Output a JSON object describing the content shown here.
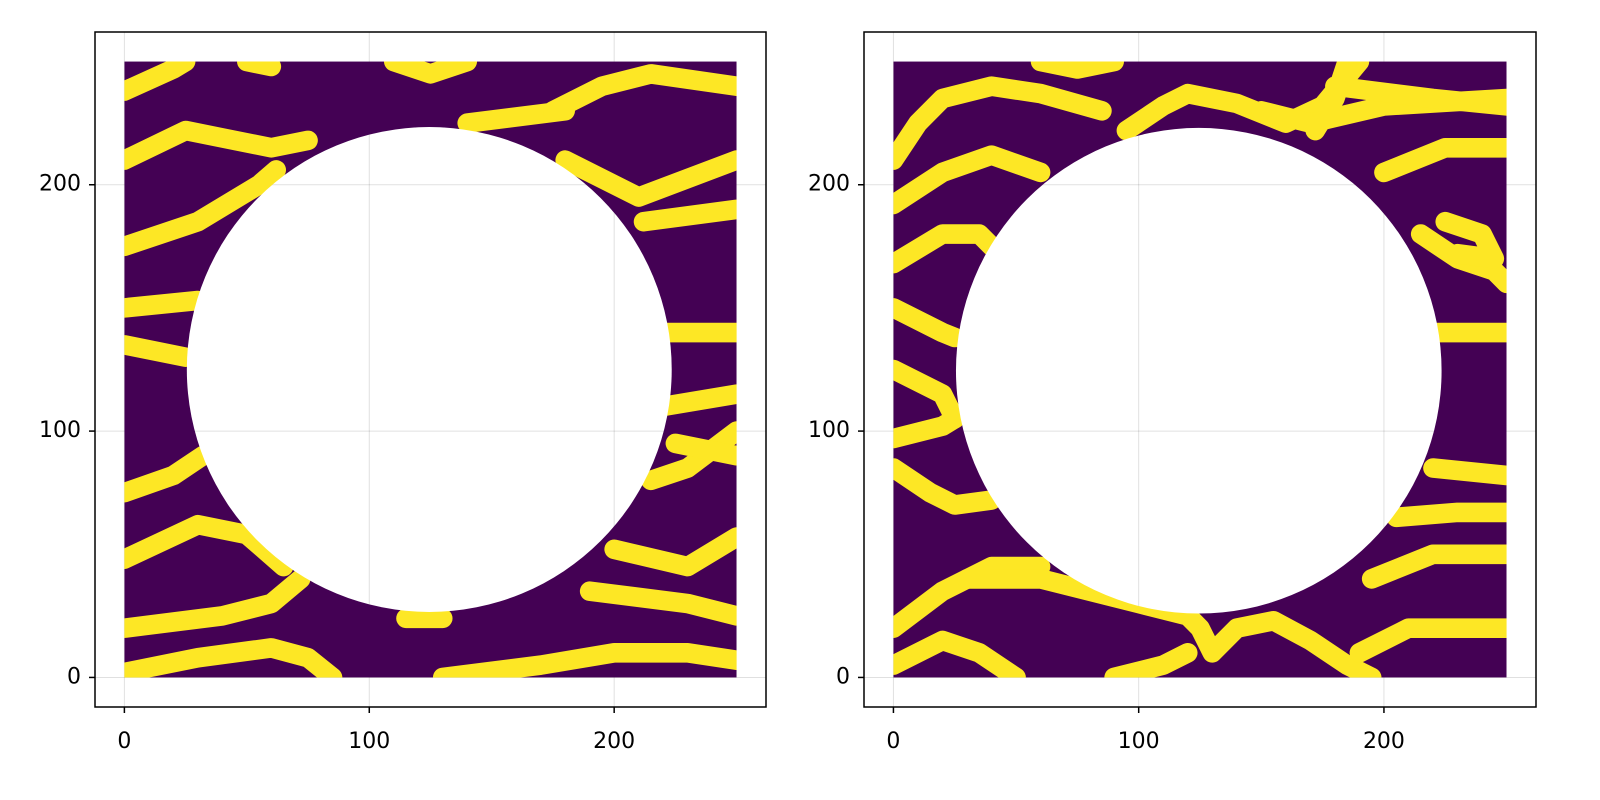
{
  "chart_data": [
    {
      "type": "heatmap",
      "xlim": [
        -12,
        262
      ],
      "ylim": [
        -12,
        262
      ],
      "xticks": [
        0,
        100,
        200
      ],
      "yticks": [
        0,
        100,
        200
      ],
      "grid": true,
      "extent": [
        0,
        250
      ],
      "background_color": "#440154",
      "color": "#fde725",
      "streak_width": 8,
      "hole": {
        "cx": 124.5,
        "cy": 125,
        "r": 99
      },
      "streaks": [
        {
          "x": [
            0,
            20,
            25
          ],
          "y": [
            238,
            247,
            250
          ]
        },
        {
          "x": [
            0,
            25,
            60,
            75
          ],
          "y": [
            210,
            222,
            215,
            218
          ]
        },
        {
          "x": [
            0,
            30,
            55,
            62
          ],
          "y": [
            175,
            185,
            200,
            206
          ]
        },
        {
          "x": [
            0,
            30
          ],
          "y": [
            150,
            153
          ]
        },
        {
          "x": [
            0,
            25
          ],
          "y": [
            135,
            130
          ]
        },
        {
          "x": [
            0,
            20,
            32
          ],
          "y": [
            75,
            82,
            90
          ]
        },
        {
          "x": [
            0,
            30,
            50,
            65
          ],
          "y": [
            48,
            62,
            58,
            45
          ]
        },
        {
          "x": [
            0,
            40,
            60,
            72
          ],
          "y": [
            20,
            25,
            30,
            40
          ]
        },
        {
          "x": [
            0,
            30,
            60,
            75,
            85
          ],
          "y": [
            2,
            8,
            12,
            8,
            0
          ]
        },
        {
          "x": [
            115,
            130
          ],
          "y": [
            24,
            24
          ]
        },
        {
          "x": [
            130,
            170,
            200,
            230,
            250
          ],
          "y": [
            0,
            5,
            10,
            10,
            7
          ]
        },
        {
          "x": [
            190,
            230,
            250
          ],
          "y": [
            35,
            30,
            25
          ]
        },
        {
          "x": [
            200,
            230,
            250
          ],
          "y": [
            52,
            45,
            57
          ]
        },
        {
          "x": [
            215,
            230,
            250
          ],
          "y": [
            80,
            85,
            100
          ]
        },
        {
          "x": [
            225,
            250
          ],
          "y": [
            95,
            90
          ]
        },
        {
          "x": [
            220,
            250
          ],
          "y": [
            110,
            115
          ]
        },
        {
          "x": [
            222,
            250
          ],
          "y": [
            140,
            140
          ]
        },
        {
          "x": [
            212,
            250
          ],
          "y": [
            185,
            190
          ]
        },
        {
          "x": [
            180,
            210,
            250
          ],
          "y": [
            210,
            195,
            210
          ]
        },
        {
          "x": [
            140,
            180
          ],
          "y": [
            225,
            230
          ]
        },
        {
          "x": [
            175,
            195,
            215,
            250
          ],
          "y": [
            230,
            240,
            245,
            240
          ]
        },
        {
          "x": [
            110,
            125,
            140
          ],
          "y": [
            250,
            245,
            250
          ]
        },
        {
          "x": [
            50,
            60
          ],
          "y": [
            250,
            248
          ]
        }
      ]
    },
    {
      "type": "heatmap",
      "xlim": [
        -12,
        262
      ],
      "ylim": [
        -12,
        262
      ],
      "xticks": [
        0,
        100,
        200
      ],
      "yticks": [
        0,
        100,
        200
      ],
      "grid": true,
      "extent": [
        0,
        250
      ],
      "background_color": "#440154",
      "color": "#fde725",
      "streak_width": 8,
      "hole": {
        "cx": 124.5,
        "cy": 124.5,
        "r": 99
      },
      "streaks": [
        {
          "x": [
            60,
            75,
            90
          ],
          "y": [
            250,
            247,
            250
          ]
        },
        {
          "x": [
            0,
            10,
            20,
            40,
            60,
            85
          ],
          "y": [
            210,
            225,
            235,
            240,
            237,
            230
          ]
        },
        {
          "x": [
            95,
            110,
            120,
            140,
            160,
            175,
            190
          ],
          "y": [
            222,
            232,
            237,
            233,
            225,
            232,
            250
          ]
        },
        {
          "x": [
            150,
            170,
            200,
            250
          ],
          "y": [
            230,
            225,
            232,
            235
          ]
        },
        {
          "x": [
            0,
            20,
            40,
            60
          ],
          "y": [
            192,
            205,
            212,
            205
          ]
        },
        {
          "x": [
            0,
            20,
            35,
            40
          ],
          "y": [
            168,
            180,
            180,
            175
          ]
        },
        {
          "x": [
            0,
            20,
            25
          ],
          "y": [
            150,
            140,
            138
          ]
        },
        {
          "x": [
            0,
            20,
            25
          ],
          "y": [
            125,
            115,
            105
          ]
        },
        {
          "x": [
            0,
            20,
            25
          ],
          "y": [
            97,
            102,
            105
          ]
        },
        {
          "x": [
            0,
            15,
            25,
            40
          ],
          "y": [
            85,
            75,
            70,
            72
          ]
        },
        {
          "x": [
            0,
            20,
            40,
            60
          ],
          "y": [
            20,
            35,
            45,
            45
          ]
        },
        {
          "x": [
            0,
            20,
            35,
            50
          ],
          "y": [
            5,
            15,
            10,
            0
          ]
        },
        {
          "x": [
            30,
            60,
            100,
            120,
            125,
            130,
            140,
            155,
            170,
            185,
            195
          ],
          "y": [
            40,
            40,
            30,
            25,
            20,
            10,
            20,
            23,
            15,
            5,
            0
          ]
        },
        {
          "x": [
            90,
            110,
            120
          ],
          "y": [
            0,
            5,
            10
          ]
        },
        {
          "x": [
            190,
            210,
            250
          ],
          "y": [
            10,
            20,
            20
          ]
        },
        {
          "x": [
            195,
            220,
            250
          ],
          "y": [
            40,
            50,
            50
          ]
        },
        {
          "x": [
            205,
            230,
            250
          ],
          "y": [
            65,
            67,
            67
          ]
        },
        {
          "x": [
            220,
            250
          ],
          "y": [
            85,
            82
          ]
        },
        {
          "x": [
            222,
            250
          ],
          "y": [
            140,
            140
          ]
        },
        {
          "x": [
            215,
            230,
            245,
            250
          ],
          "y": [
            180,
            170,
            165,
            160
          ]
        },
        {
          "x": [
            225,
            240,
            245,
            230
          ],
          "y": [
            185,
            180,
            170,
            172
          ]
        },
        {
          "x": [
            200,
            225,
            250
          ],
          "y": [
            205,
            215,
            215
          ]
        },
        {
          "x": [
            180,
            220,
            250
          ],
          "y": [
            240,
            235,
            232
          ]
        },
        {
          "x": [
            185,
            180,
            172
          ],
          "y": [
            250,
            235,
            222
          ]
        }
      ]
    }
  ]
}
